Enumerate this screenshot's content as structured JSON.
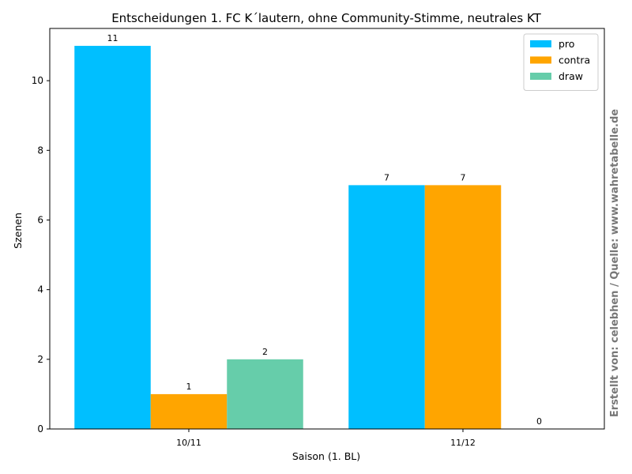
{
  "chart_data": {
    "type": "bar",
    "title": "Entscheidungen 1. FC K´lautern, ohne Community-Stimme, neutrales KT",
    "xlabel": "Saison (1. BL)",
    "ylabel": "Szenen",
    "categories": [
      "10/11",
      "11/12"
    ],
    "series": [
      {
        "name": "pro",
        "values": [
          11,
          7
        ],
        "color": "#00bfff"
      },
      {
        "name": "contra",
        "values": [
          1,
          7
        ],
        "color": "#ffa500"
      },
      {
        "name": "draw",
        "values": [
          2,
          0
        ],
        "color": "#66cdaa"
      }
    ],
    "ylim": [
      0,
      11.5
    ],
    "yticks": [
      0,
      2,
      4,
      6,
      8,
      10
    ],
    "grid": false,
    "legend_position": "top-right",
    "data_labels": true
  },
  "credit": "Erstellt von: celebhen / Quelle: www.wahretabelle.de"
}
